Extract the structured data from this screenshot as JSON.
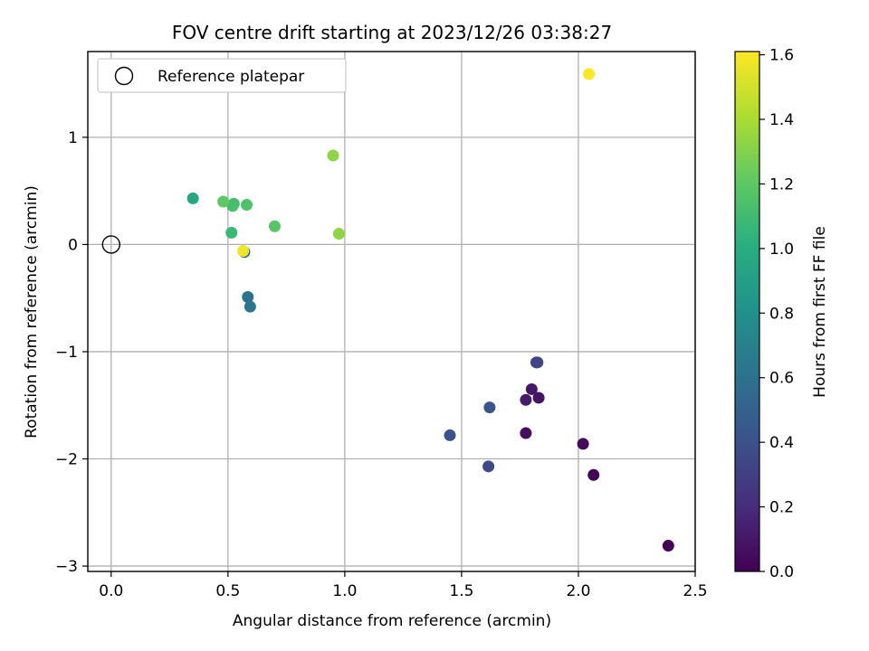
{
  "chart_data": {
    "type": "scatter",
    "title": "FOV centre drift starting at 2023/12/26 03:38:27",
    "xlabel": "Angular distance from reference (arcmin)",
    "ylabel": "Rotation from reference (arcmin)",
    "xlim": [
      -0.1,
      2.5
    ],
    "ylim": [
      -3.05,
      1.8
    ],
    "xticks": [
      0.0,
      0.5,
      1.0,
      1.5,
      2.0,
      2.5
    ],
    "xtick_labels": [
      "0.0",
      "0.5",
      "1.0",
      "1.5",
      "2.0",
      "2.5"
    ],
    "yticks": [
      -3,
      -2,
      -1,
      0,
      1
    ],
    "ytick_labels": [
      "−3",
      "−2",
      "−1",
      "0",
      "1"
    ],
    "grid": true,
    "colormap": "viridis",
    "colorbar": {
      "label": "Hours from first FF file",
      "range": [
        0.0,
        1.61
      ],
      "ticks": [
        0.0,
        0.2,
        0.4,
        0.6,
        0.8,
        1.0,
        1.2,
        1.4,
        1.6
      ],
      "tick_labels": [
        "0.0",
        "0.2",
        "0.4",
        "0.6",
        "0.8",
        "1.0",
        "1.2",
        "1.4",
        "1.6"
      ]
    },
    "legend": {
      "placement": "upper-left",
      "entries": [
        {
          "label": "Reference platepar",
          "marker": "open-circle",
          "color": "#000000"
        }
      ]
    },
    "reference_point": {
      "x": 0.0,
      "y": 0.0
    },
    "points": [
      {
        "x": 2.385,
        "y": -2.81,
        "c": 0.0
      },
      {
        "x": 2.065,
        "y": -2.15,
        "c": 0.02
      },
      {
        "x": 2.02,
        "y": -1.86,
        "c": 0.04
      },
      {
        "x": 1.775,
        "y": -1.76,
        "c": 0.06
      },
      {
        "x": 1.83,
        "y": -1.43,
        "c": 0.08
      },
      {
        "x": 1.8,
        "y": -1.35,
        "c": 0.1
      },
      {
        "x": 1.775,
        "y": -1.45,
        "c": 0.12
      },
      {
        "x": 1.82,
        "y": -1.1,
        "c": 0.3
      },
      {
        "x": 1.825,
        "y": -1.1,
        "c": 0.33
      },
      {
        "x": 1.615,
        "y": -2.07,
        "c": 0.36
      },
      {
        "x": 1.45,
        "y": -1.78,
        "c": 0.4
      },
      {
        "x": 1.62,
        "y": -1.52,
        "c": 0.42
      },
      {
        "x": 0.57,
        "y": -0.07,
        "c": 0.55
      },
      {
        "x": 0.585,
        "y": -0.49,
        "c": 0.6
      },
      {
        "x": 0.595,
        "y": -0.58,
        "c": 0.63
      },
      {
        "x": 0.35,
        "y": 0.43,
        "c": 0.95
      },
      {
        "x": 0.515,
        "y": 0.11,
        "c": 1.08
      },
      {
        "x": 0.525,
        "y": 0.38,
        "c": 1.1
      },
      {
        "x": 0.52,
        "y": 0.36,
        "c": 1.12
      },
      {
        "x": 0.58,
        "y": 0.37,
        "c": 1.15
      },
      {
        "x": 0.7,
        "y": 0.17,
        "c": 1.18
      },
      {
        "x": 0.48,
        "y": 0.4,
        "c": 1.2
      },
      {
        "x": 0.95,
        "y": 0.83,
        "c": 1.33
      },
      {
        "x": 0.975,
        "y": 0.1,
        "c": 1.33
      },
      {
        "x": 0.565,
        "y": -0.06,
        "c": 1.58
      },
      {
        "x": 2.045,
        "y": 1.59,
        "c": 1.61
      }
    ]
  }
}
